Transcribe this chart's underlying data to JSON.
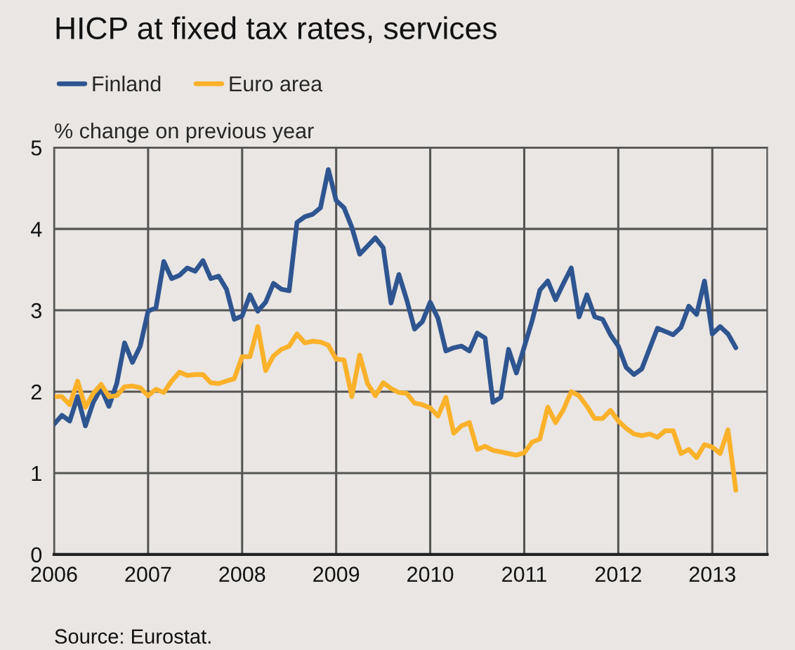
{
  "chart_data": {
    "type": "line",
    "title": "HICP at fixed tax rates, services",
    "ylabel": "% change on previous year",
    "annotations": [
      "Source: Eurostat."
    ],
    "x": [
      "2006-01",
      "2006-02",
      "2006-03",
      "2006-04",
      "2006-05",
      "2006-06",
      "2006-07",
      "2006-08",
      "2006-09",
      "2006-10",
      "2006-11",
      "2006-12",
      "2007-01",
      "2007-02",
      "2007-03",
      "2007-04",
      "2007-05",
      "2007-06",
      "2007-07",
      "2007-08",
      "2007-09",
      "2007-10",
      "2007-11",
      "2007-12",
      "2008-01",
      "2008-02",
      "2008-03",
      "2008-04",
      "2008-05",
      "2008-06",
      "2008-07",
      "2008-08",
      "2008-09",
      "2008-10",
      "2008-11",
      "2008-12",
      "2009-01",
      "2009-02",
      "2009-03",
      "2009-04",
      "2009-05",
      "2009-06",
      "2009-07",
      "2009-08",
      "2009-09",
      "2009-10",
      "2009-11",
      "2009-12",
      "2010-01",
      "2010-02",
      "2010-03",
      "2010-04",
      "2010-05",
      "2010-06",
      "2010-07",
      "2010-08",
      "2010-09",
      "2010-10",
      "2010-11",
      "2010-12",
      "2011-01",
      "2011-02",
      "2011-03",
      "2011-04",
      "2011-05",
      "2011-06",
      "2011-07",
      "2011-08",
      "2011-09",
      "2011-10",
      "2011-11",
      "2011-12",
      "2012-01",
      "2012-02",
      "2012-03",
      "2012-04",
      "2012-05",
      "2012-06",
      "2012-07",
      "2012-08",
      "2012-09",
      "2012-10",
      "2012-11",
      "2012-12",
      "2013-01",
      "2013-02",
      "2013-03",
      "2013-04"
    ],
    "series": [
      {
        "name": "Finland",
        "color": "#2e5590",
        "values": [
          1.6,
          1.71,
          1.64,
          1.94,
          1.58,
          1.87,
          2.04,
          1.82,
          2.1,
          2.6,
          2.36,
          2.56,
          2.99,
          3.03,
          3.6,
          3.39,
          3.43,
          3.52,
          3.48,
          3.61,
          3.39,
          3.42,
          3.26,
          2.89,
          2.93,
          3.19,
          2.99,
          3.1,
          3.33,
          3.26,
          3.24,
          4.08,
          4.15,
          4.18,
          4.26,
          4.73,
          4.35,
          4.26,
          4.02,
          3.69,
          3.79,
          3.89,
          3.77,
          3.09,
          3.44,
          3.13,
          2.77,
          2.86,
          3.1,
          2.9,
          2.5,
          2.54,
          2.56,
          2.5,
          2.72,
          2.66,
          1.87,
          1.93,
          2.52,
          2.23,
          2.55,
          2.87,
          3.25,
          3.36,
          3.13,
          3.33,
          3.52,
          2.92,
          3.19,
          2.92,
          2.89,
          2.7,
          2.56,
          2.3,
          2.21,
          2.28,
          2.53,
          2.78,
          2.74,
          2.7,
          2.79,
          3.05,
          2.95,
          3.36,
          2.71,
          2.8,
          2.71,
          2.54
        ]
      },
      {
        "name": "Euro area",
        "color": "#fbb12a",
        "values": [
          1.94,
          1.94,
          1.84,
          2.13,
          1.81,
          1.98,
          2.09,
          1.94,
          1.95,
          2.06,
          2.07,
          2.05,
          1.95,
          2.03,
          1.99,
          2.13,
          2.24,
          2.2,
          2.21,
          2.21,
          2.11,
          2.1,
          2.13,
          2.16,
          2.43,
          2.43,
          2.8,
          2.26,
          2.44,
          2.52,
          2.56,
          2.71,
          2.6,
          2.62,
          2.61,
          2.57,
          2.4,
          2.39,
          1.94,
          2.45,
          2.1,
          1.95,
          2.11,
          2.04,
          1.99,
          1.98,
          1.86,
          1.84,
          1.8,
          1.7,
          1.93,
          1.49,
          1.58,
          1.62,
          1.29,
          1.33,
          1.28,
          1.26,
          1.24,
          1.22,
          1.25,
          1.38,
          1.42,
          1.81,
          1.62,
          1.78,
          2.0,
          1.95,
          1.82,
          1.67,
          1.67,
          1.77,
          1.64,
          1.55,
          1.48,
          1.46,
          1.48,
          1.44,
          1.52,
          1.52,
          1.24,
          1.29,
          1.19,
          1.35,
          1.32,
          1.24,
          1.53,
          0.79
        ]
      }
    ],
    "xlim": [
      "2006-01",
      "2013-08"
    ],
    "xticks": [
      "2006",
      "2007",
      "2008",
      "2009",
      "2010",
      "2011",
      "2012",
      "2013"
    ],
    "ylim": [
      0,
      5
    ],
    "yticks": [
      0,
      1,
      2,
      3,
      4,
      5
    ],
    "grid": true,
    "legend": "top left",
    "line_style": "solid",
    "marker": "none"
  }
}
